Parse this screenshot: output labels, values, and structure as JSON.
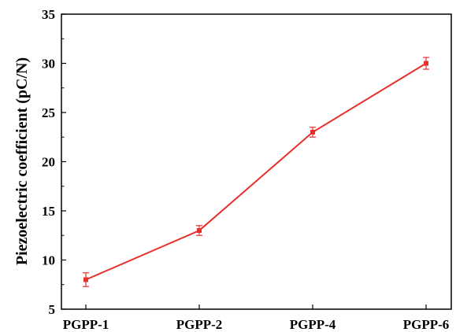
{
  "chart_data": {
    "type": "line",
    "categories": [
      "PGPP-1",
      "PGPP-2",
      "PGPP-4",
      "PGPP-6"
    ],
    "series": [
      {
        "values": [
          8,
          13,
          23,
          30
        ],
        "errors": [
          0.7,
          0.5,
          0.5,
          0.6
        ],
        "color": "#e8302a",
        "marker": "square"
      }
    ],
    "title": "",
    "xlabel": "",
    "ylabel": "Piezoelectric coefficient (pC/N)",
    "ylim": [
      5,
      35
    ],
    "yticks": [
      "5",
      "10",
      "15",
      "20",
      "25",
      "30",
      "35"
    ],
    "grid": false,
    "legend": "none"
  }
}
